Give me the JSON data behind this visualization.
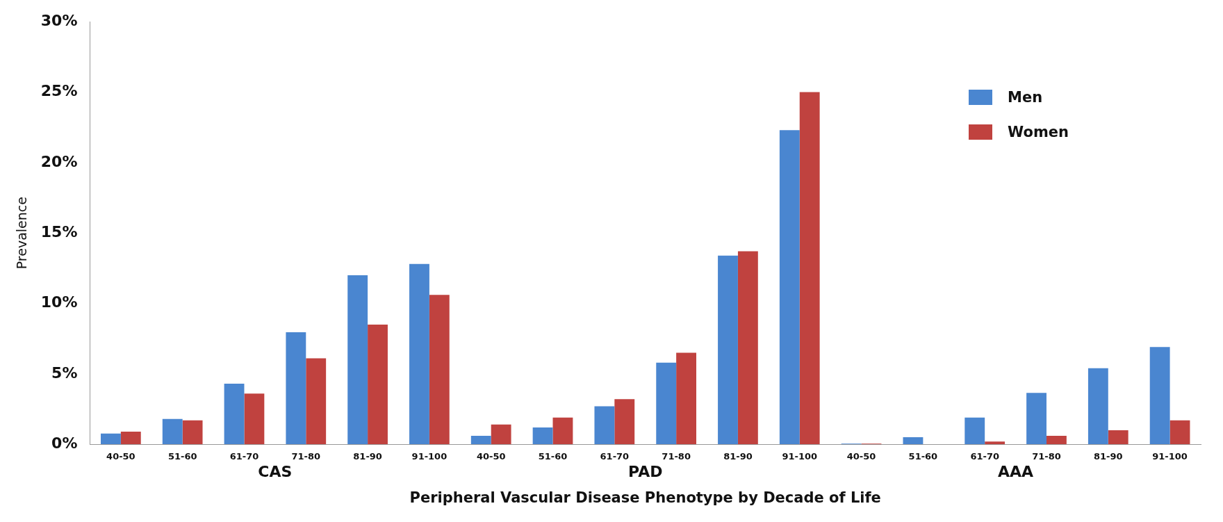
{
  "chart_data": {
    "type": "bar",
    "xlabel": "Peripheral Vascular Disease Phenotype by Decade of Life",
    "ylabel": "Prevalence",
    "categories": [
      "40-50",
      "51-60",
      "61-70",
      "71-80",
      "81-90",
      "91-100",
      "40-50",
      "51-60",
      "61-70",
      "71-80",
      "81-90",
      "91-100",
      "40-50",
      "51-60",
      "61-70",
      "71-80",
      "81-90",
      "91-100"
    ],
    "series": [
      {
        "name": "Men",
        "color": "#4a86d0",
        "values": [
          0.76,
          1.8,
          4.3,
          7.95,
          12.0,
          12.8,
          0.6,
          1.2,
          2.7,
          5.8,
          13.4,
          22.3,
          0.05,
          0.5,
          1.9,
          3.65,
          5.4,
          6.9
        ]
      },
      {
        "name": "Women",
        "color": "#c0423f",
        "values": [
          0.9,
          1.7,
          3.6,
          6.1,
          8.5,
          10.6,
          1.4,
          1.9,
          3.2,
          6.5,
          13.7,
          25.0,
          0.05,
          0,
          0.2,
          0.6,
          1.0,
          1.7
        ]
      }
    ],
    "annotations": [
      "CAS",
      "PAD",
      "AAA"
    ],
    "ylim": [
      0,
      30
    ],
    "yticks": [
      {
        "value": 0,
        "label": "0%"
      },
      {
        "value": 5,
        "label": "5%"
      },
      {
        "value": 10,
        "label": "10%"
      },
      {
        "value": 15,
        "label": "15%"
      },
      {
        "value": 20,
        "label": "20%"
      },
      {
        "value": 25,
        "label": "25%"
      },
      {
        "value": 30,
        "label": "30%"
      }
    ],
    "grid": false,
    "legend": "top right"
  }
}
